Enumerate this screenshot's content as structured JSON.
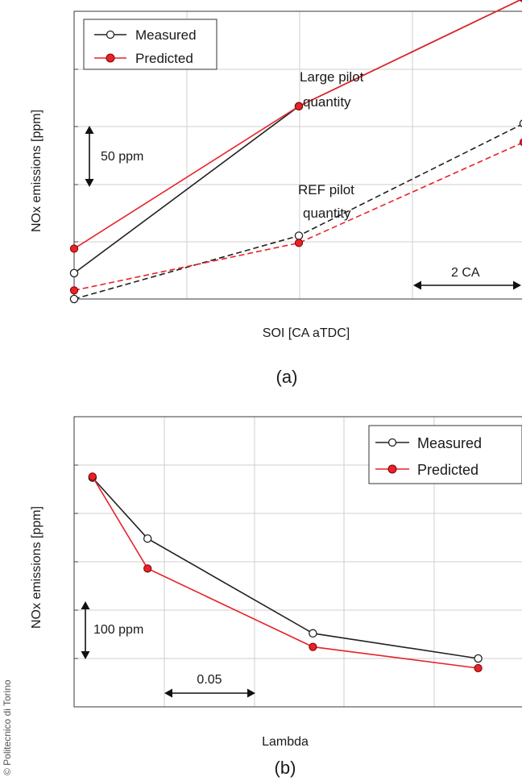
{
  "copyright": "© Politecnico di Torino",
  "chart_data": [
    {
      "type": "line",
      "caption": "(a)",
      "xlabel": "SOI [CA aTDC]",
      "ylabel": "NOx emissions [ppm]",
      "scale_bars": {
        "y": "50 ppm",
        "x": "2 CA"
      },
      "annotations": [
        "Large pilot",
        "quantity",
        "REF pilot",
        "quantity"
      ],
      "x": [
        0,
        5,
        10
      ],
      "xlim": [
        0,
        10
      ],
      "ylim": [
        0,
        200
      ],
      "grid": true,
      "legend": {
        "position": "top-left",
        "entries": [
          "Measured",
          "Predicted"
        ]
      },
      "series": [
        {
          "name": "Measured",
          "group": "Large pilot quantity",
          "style": "solid",
          "color": "#222222",
          "marker": "open",
          "values": [
            18,
            134,
            209
          ]
        },
        {
          "name": "Predicted",
          "group": "Large pilot quantity",
          "style": "solid",
          "color": "#e8222a",
          "marker": "filled",
          "values": [
            35,
            134,
            209
          ]
        },
        {
          "name": "Measured",
          "group": "REF pilot quantity",
          "style": "dashed",
          "color": "#222222",
          "marker": "open",
          "values": [
            0,
            44,
            122
          ]
        },
        {
          "name": "Predicted",
          "group": "REF pilot quantity",
          "style": "dashed",
          "color": "#e8222a",
          "marker": "filled",
          "values": [
            6,
            39,
            109
          ]
        }
      ]
    },
    {
      "type": "line",
      "caption": "(b)",
      "xlabel": "Lambda",
      "ylabel": "NOx emissions [ppm]",
      "scale_bars": {
        "y": "100 ppm",
        "x": "0.05"
      },
      "x": [
        0.0,
        0.03,
        0.12,
        0.21
      ],
      "xlim": [
        -0.01,
        0.24
      ],
      "ylim": [
        0,
        300
      ],
      "grid": true,
      "legend": {
        "position": "top-right",
        "entries": [
          "Measured",
          "Predicted"
        ]
      },
      "series": [
        {
          "name": "Measured",
          "color": "#222222",
          "marker": "open",
          "values": [
            237,
            174,
            76,
            50
          ]
        },
        {
          "name": "Predicted",
          "color": "#e8222a",
          "marker": "filled",
          "values": [
            238,
            143,
            62,
            40
          ]
        }
      ]
    }
  ]
}
